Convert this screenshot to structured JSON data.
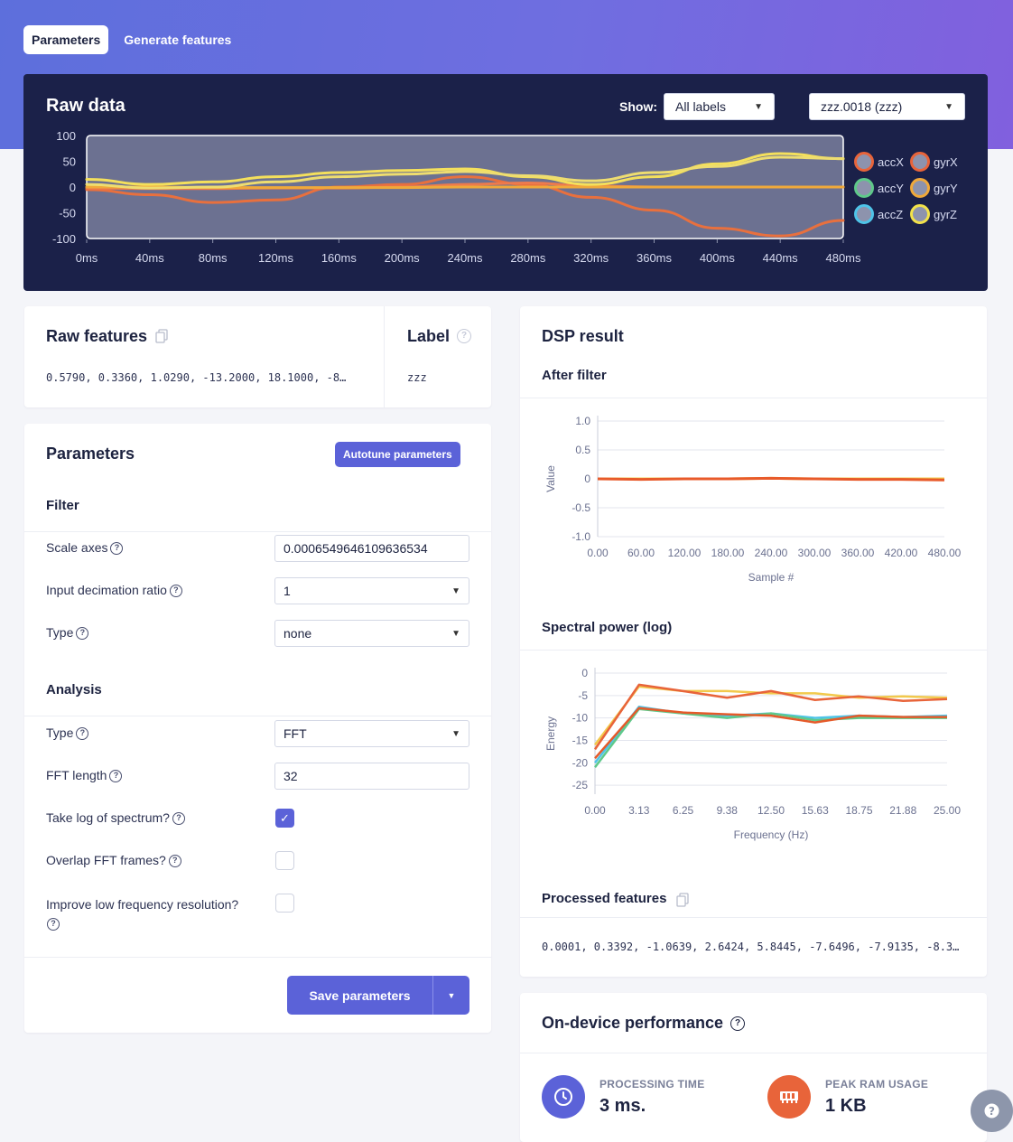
{
  "tabs": [
    {
      "label": "Parameters",
      "active": true
    },
    {
      "label": "Generate features",
      "active": false
    }
  ],
  "raw_data": {
    "title": "Raw data",
    "show_label": "Show:",
    "labels_select": "All labels",
    "sample_select": "zzz.0018 (zzz)",
    "legend": [
      {
        "name": "accX",
        "color": "#e8643a"
      },
      {
        "name": "gyrX",
        "color": "#e8643a"
      },
      {
        "name": "accY",
        "color": "#5fc98a"
      },
      {
        "name": "gyrY",
        "color": "#f0a93a"
      },
      {
        "name": "accZ",
        "color": "#4ec4e8"
      },
      {
        "name": "gyrZ",
        "color": "#f2e24a"
      }
    ]
  },
  "chart_data": [
    {
      "type": "line",
      "title": "Raw data",
      "x": [
        "0ms",
        "40ms",
        "80ms",
        "120ms",
        "160ms",
        "200ms",
        "240ms",
        "280ms",
        "320ms",
        "360ms",
        "400ms",
        "440ms",
        "480ms"
      ],
      "yticks": [
        100,
        50,
        0,
        -50,
        -100
      ],
      "ylim": [
        -100,
        100
      ],
      "series": [
        {
          "name": "accX",
          "color": "#e8703e",
          "values": [
            -5,
            -15,
            -30,
            -25,
            0,
            5,
            20,
            5,
            -20,
            -45,
            -80,
            -95,
            -65
          ]
        },
        {
          "name": "gyrX",
          "color": "#ed7b4c",
          "values": [
            -2,
            -3,
            -3,
            -2,
            -2,
            0,
            5,
            8,
            2,
            0,
            0,
            0,
            0
          ]
        },
        {
          "name": "gyrY",
          "color": "#f0a93a",
          "values": [
            0,
            0,
            -1,
            -1,
            -1,
            -1,
            0,
            0,
            0,
            0,
            0,
            0,
            0
          ]
        },
        {
          "name": "gyrZ",
          "color": "#f4e05c",
          "values": [
            15,
            5,
            10,
            20,
            28,
            32,
            35,
            20,
            5,
            20,
            45,
            65,
            55
          ]
        },
        {
          "name": "accZ",
          "color": "#eedd70",
          "values": [
            5,
            -2,
            0,
            10,
            20,
            25,
            30,
            22,
            12,
            28,
            40,
            58,
            55
          ]
        }
      ]
    },
    {
      "type": "line",
      "title": "After filter",
      "xlabel": "Sample #",
      "ylabel": "Value",
      "x": [
        "0.00",
        "60.00",
        "120.00",
        "180.00",
        "240.00",
        "300.00",
        "360.00",
        "420.00",
        "480.00"
      ],
      "yticks": [
        "1.0",
        "0.5",
        "0",
        "-0.5",
        "-1.0"
      ],
      "ylim": [
        -1,
        1
      ],
      "series": [
        {
          "name": "s1",
          "color": "#f2c94c",
          "values": [
            0,
            0,
            0,
            0,
            0.01,
            0,
            0,
            0,
            0
          ]
        },
        {
          "name": "s2",
          "color": "#e85a2a",
          "values": [
            0,
            -0.01,
            0,
            0,
            0.01,
            0,
            -0.01,
            -0.01,
            -0.02
          ]
        }
      ]
    },
    {
      "type": "line",
      "title": "Spectral power (log)",
      "xlabel": "Frequency (Hz)",
      "ylabel": "Energy",
      "x": [
        "0.00",
        "3.13",
        "6.25",
        "9.38",
        "12.50",
        "15.63",
        "18.75",
        "21.88",
        "25.00"
      ],
      "yticks": [
        0,
        -5,
        -10,
        -15,
        -20,
        -25
      ],
      "ylim": [
        -27,
        0
      ],
      "series": [
        {
          "name": "s1",
          "color": "#f2c94c",
          "values": [
            -16,
            -3,
            -4,
            -4,
            -4.5,
            -4.5,
            -5.5,
            -5.2,
            -5.5
          ]
        },
        {
          "name": "s2",
          "color": "#e8643a",
          "values": [
            -17,
            -2.6,
            -4,
            -5.5,
            -4,
            -6,
            -5.2,
            -6.2,
            -5.8
          ]
        },
        {
          "name": "s3",
          "color": "#4ec4e8",
          "values": [
            -20,
            -7.5,
            -9,
            -9.5,
            -9,
            -10,
            -9.5,
            -9.8,
            -9.5
          ]
        },
        {
          "name": "s4",
          "color": "#5fc98a",
          "values": [
            -21,
            -8,
            -9,
            -10,
            -9,
            -10.5,
            -10,
            -10,
            -10
          ]
        },
        {
          "name": "s5",
          "color": "#e55a2a",
          "values": [
            -19,
            -7.8,
            -8.8,
            -9.2,
            -9.5,
            -11,
            -9.5,
            -9.8,
            -9.8
          ]
        }
      ]
    }
  ],
  "raw_features": {
    "title": "Raw features",
    "value": "0.5790, 0.3360, 1.0290, -13.2000, 18.1000, -8…"
  },
  "label_card": {
    "title": "Label",
    "value": "zzz"
  },
  "parameters": {
    "title": "Parameters",
    "autotune_label": "Autotune parameters",
    "filter_title": "Filter",
    "scale_axes_label": "Scale axes",
    "scale_axes_value": "0.0006549646109636534",
    "decimation_label": "Input decimation ratio",
    "decimation_value": "1",
    "filter_type_label": "Type",
    "filter_type_value": "none",
    "analysis_title": "Analysis",
    "analysis_type_label": "Type",
    "analysis_type_value": "FFT",
    "fft_length_label": "FFT length",
    "fft_length_value": "32",
    "take_log_label": "Take log of spectrum?",
    "take_log_checked": true,
    "overlap_label": "Overlap FFT frames?",
    "overlap_checked": false,
    "low_freq_label": "Improve low frequency resolution?",
    "low_freq_checked": false,
    "save_label": "Save parameters"
  },
  "dsp": {
    "title": "DSP result",
    "after_filter_title": "After filter",
    "spectral_title": "Spectral power (log)",
    "processed_title": "Processed features",
    "processed_value": "0.0001, 0.3392, -1.0639, 2.6424, 5.8445, -7.6496, -7.9135, -8.3…"
  },
  "performance": {
    "title": "On-device performance",
    "processing_label": "PROCESSING TIME",
    "processing_value": "3 ms.",
    "ram_label": "PEAK RAM USAGE",
    "ram_value": "1 KB",
    "processing_color": "#5b62d8",
    "ram_color": "#e8643a"
  }
}
